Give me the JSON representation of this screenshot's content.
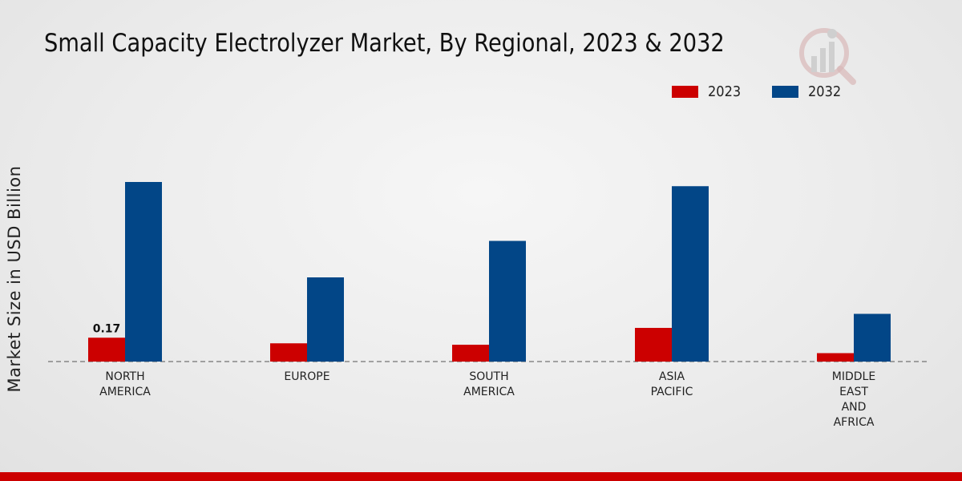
{
  "chart_data": {
    "type": "bar",
    "title": "Small Capacity Electrolyzer Market, By Regional, 2023 & 2032",
    "xlabel": "",
    "ylabel": "Market Size in USD Billion",
    "categories": [
      [
        "NORTH",
        "AMERICA"
      ],
      [
        "EUROPE"
      ],
      [
        "SOUTH",
        "AMERICA"
      ],
      [
        "ASIA",
        "PACIFIC"
      ],
      [
        "MIDDLE",
        "EAST",
        "AND",
        "AFRICA"
      ]
    ],
    "series": [
      {
        "name": "2023",
        "color": "#cc0000",
        "values": [
          0.17,
          0.13,
          0.12,
          0.24,
          0.06
        ]
      },
      {
        "name": "2032",
        "color": "#024687",
        "values": [
          1.28,
          0.6,
          0.86,
          1.25,
          0.34
        ]
      }
    ],
    "data_labels": [
      {
        "series": 0,
        "index": 0,
        "text": "0.17"
      }
    ],
    "ylim": [
      0,
      2.0
    ],
    "grid": false,
    "legend_position": "top-right"
  }
}
